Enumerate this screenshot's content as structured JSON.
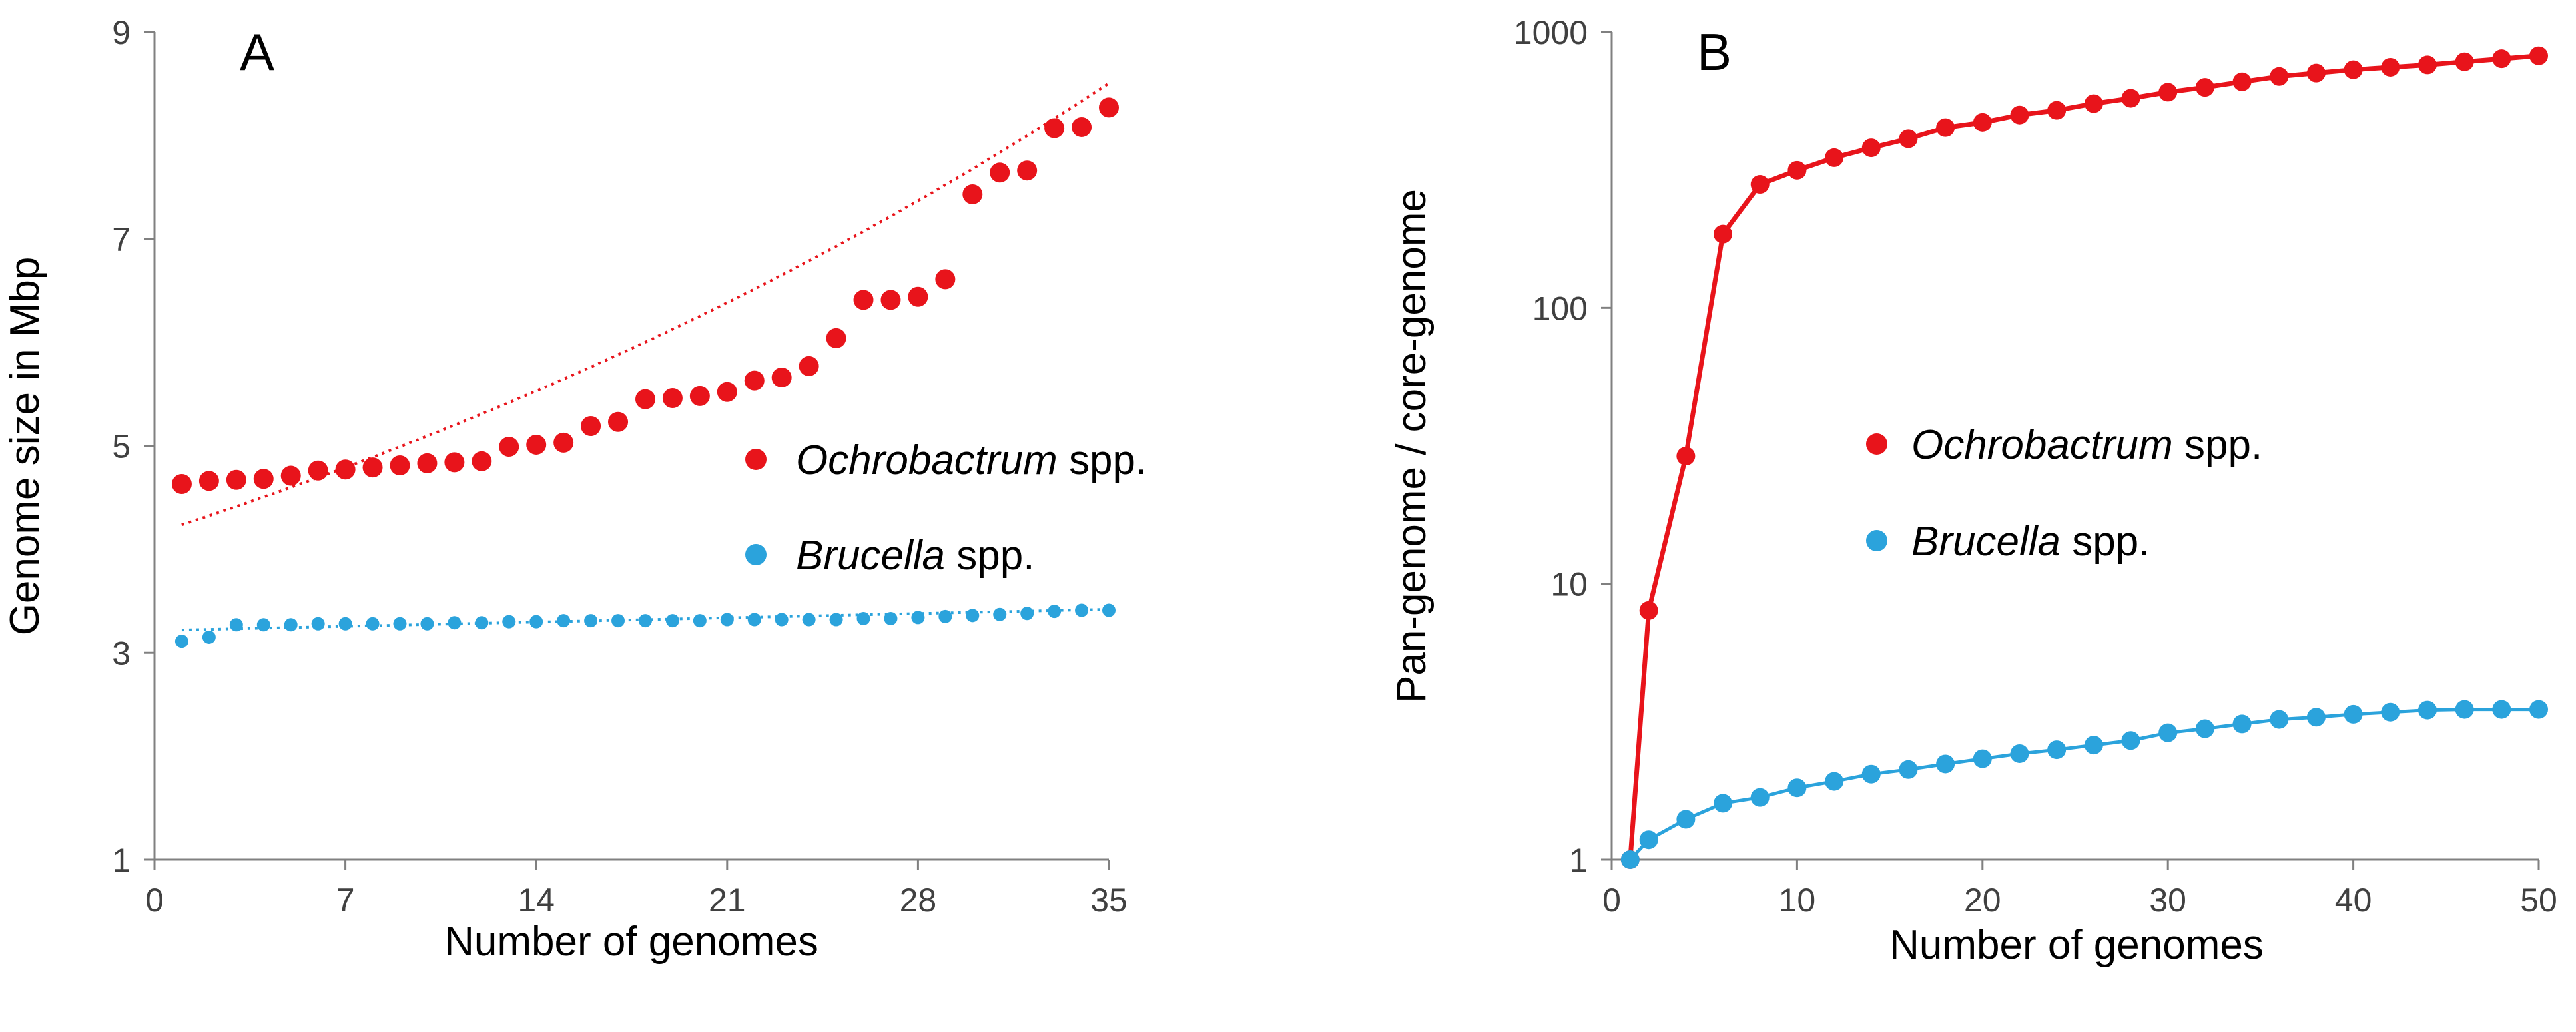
{
  "chart_data": [
    {
      "panel": "A",
      "type": "scatter",
      "title": "",
      "xlabel": "Number of genomes",
      "ylabel": "Genome size in Mbp",
      "xlim": [
        0,
        35
      ],
      "ylim": [
        1,
        9
      ],
      "xticks": [
        "0",
        "7",
        "14",
        "21",
        "28",
        "35"
      ],
      "yticks": [
        "1",
        "3",
        "5",
        "7",
        "9"
      ],
      "grid": false,
      "legend_position": "center-right",
      "series": [
        {
          "name": "Ochrobactrum",
          "suffix": " spp.",
          "color": "#e8141b",
          "marker": "large-dot",
          "trendline": "exponential (dotted)",
          "x": [
            1,
            2,
            3,
            4,
            5,
            6,
            7,
            8,
            9,
            10,
            11,
            12,
            13,
            14,
            15,
            16,
            17,
            18,
            19,
            20,
            21,
            22,
            23,
            24,
            25,
            26,
            27,
            28,
            29,
            30,
            31,
            32,
            33,
            34,
            35
          ],
          "y": [
            4.63,
            4.66,
            4.67,
            4.68,
            4.71,
            4.76,
            4.77,
            4.79,
            4.81,
            4.83,
            4.84,
            4.85,
            4.99,
            5.01,
            5.03,
            5.19,
            5.23,
            5.45,
            5.46,
            5.48,
            5.52,
            5.63,
            5.66,
            5.77,
            6.04,
            6.41,
            6.41,
            6.44,
            6.61,
            7.43,
            7.64,
            7.66,
            8.07,
            8.08,
            8.27
          ]
        },
        {
          "name": "Brucella",
          "suffix": " spp.",
          "color": "#2ba3dc",
          "marker": "small-dot",
          "trendline": "linear (dotted)",
          "x": [
            1,
            2,
            3,
            4,
            5,
            6,
            7,
            8,
            9,
            10,
            11,
            12,
            13,
            14,
            15,
            16,
            17,
            18,
            19,
            20,
            21,
            22,
            23,
            24,
            25,
            26,
            27,
            28,
            29,
            30,
            31,
            32,
            33,
            34,
            35
          ],
          "y": [
            3.11,
            3.15,
            3.27,
            3.27,
            3.27,
            3.28,
            3.28,
            3.28,
            3.28,
            3.28,
            3.29,
            3.29,
            3.3,
            3.3,
            3.31,
            3.31,
            3.31,
            3.31,
            3.31,
            3.31,
            3.32,
            3.32,
            3.32,
            3.32,
            3.32,
            3.33,
            3.33,
            3.34,
            3.35,
            3.36,
            3.37,
            3.38,
            3.4,
            3.41,
            3.41
          ]
        }
      ]
    },
    {
      "panel": "B",
      "type": "line",
      "title": "",
      "xlabel": "Number of genomes",
      "ylabel": "Pan-genome / core-genome",
      "xlim": [
        0,
        50
      ],
      "ylim": [
        1,
        1000
      ],
      "yscale": "log",
      "xticks": [
        "0",
        "10",
        "20",
        "30",
        "40",
        "50"
      ],
      "yticks": [
        "1",
        "10",
        "100",
        "1000"
      ],
      "grid": false,
      "legend_position": "center",
      "series": [
        {
          "name": "Ochrobactrum",
          "suffix": " spp.",
          "color": "#e8141b",
          "marker": "dot",
          "x": [
            1,
            2,
            4,
            6,
            8,
            10,
            12,
            14,
            16,
            18,
            20,
            22,
            24,
            26,
            28,
            30,
            32,
            34,
            36,
            38,
            40,
            42,
            44,
            46,
            48,
            50
          ],
          "y": [
            1,
            8,
            29,
            185,
            280,
            315,
            350,
            380,
            410,
            450,
            470,
            500,
            520,
            550,
            575,
            605,
            630,
            660,
            690,
            710,
            730,
            745,
            760,
            780,
            800,
            820
          ]
        },
        {
          "name": "Brucella",
          "suffix": " spp.",
          "color": "#2ba3dc",
          "marker": "dot",
          "x": [
            1,
            2,
            4,
            6,
            8,
            10,
            12,
            14,
            16,
            18,
            20,
            22,
            24,
            26,
            28,
            30,
            32,
            34,
            36,
            38,
            40,
            42,
            44,
            46,
            48,
            50
          ],
          "y": [
            1,
            1.18,
            1.4,
            1.6,
            1.68,
            1.82,
            1.92,
            2.04,
            2.12,
            2.22,
            2.32,
            2.42,
            2.5,
            2.6,
            2.7,
            2.88,
            2.98,
            3.1,
            3.22,
            3.28,
            3.36,
            3.42,
            3.48,
            3.5,
            3.5,
            3.5
          ]
        }
      ]
    }
  ]
}
